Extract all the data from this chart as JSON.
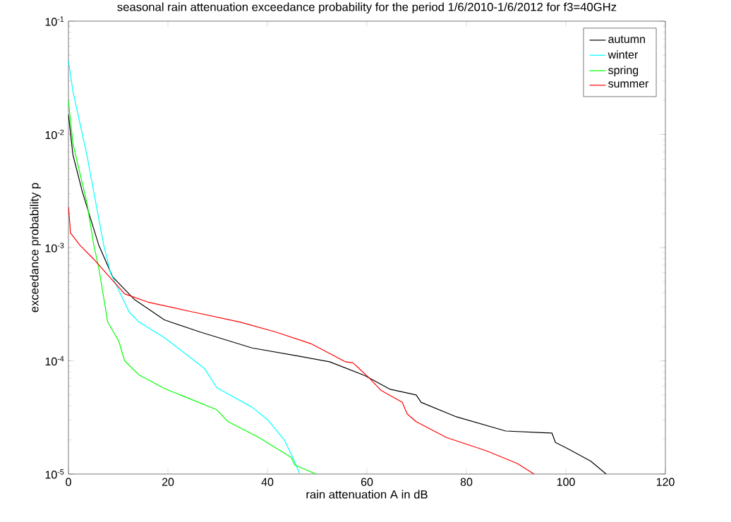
{
  "chart_data": {
    "type": "line",
    "title": "seasonal rain attenuation exceedance probability for the period 1/6/2010-1/6/2012 for f3=40GHz",
    "xlabel": "rain attenuation  A in dB",
    "ylabel": "exceedance probability p",
    "log": "y",
    "xlim": [
      0,
      120
    ],
    "ylim": [
      1e-05,
      0.1
    ],
    "xticks": [
      0,
      20,
      40,
      60,
      80,
      100,
      120
    ],
    "yticks": [
      {
        "value": 1e-05,
        "label": "10$^{-5}$"
      },
      {
        "value": 0.0001,
        "label": "10$^{-4}$"
      },
      {
        "value": 0.001,
        "label": "10$^{-3}$"
      },
      {
        "value": 0.01,
        "label": "10$^{-2}$"
      },
      {
        "value": 0.1,
        "label": "10$^{-1}$"
      }
    ],
    "legend": "top right",
    "grid": false,
    "line_style": "solid",
    "series": [
      {
        "name": "autumn",
        "color": "#000000",
        "x": [
          0,
          0.9,
          2.8,
          6.1,
          8.9,
          13.2,
          19.3,
          26.4,
          36.9,
          46.3,
          52.5,
          59.6,
          64.7,
          69.9,
          70.9,
          78,
          87.9,
          97.2,
          97.9,
          100.1,
          105,
          108.1
        ],
        "values": [
          0.015,
          0.0066,
          0.0031,
          0.00105,
          0.00055,
          0.00035,
          0.00023,
          0.00018,
          0.00013,
          0.00011,
          9.8e-05,
          7.4e-05,
          5.6e-05,
          5e-05,
          4.3e-05,
          3.2e-05,
          2.4e-05,
          2.3e-05,
          1.9e-05,
          1.7e-05,
          1.3e-05,
          1e-05
        ]
      },
      {
        "name": "winter",
        "color": "#00ffff",
        "x": [
          0,
          0.9,
          3.7,
          7.1,
          8.5,
          12.2,
          14.2,
          19.3,
          24.5,
          27.4,
          29.8,
          36.9,
          40.1,
          43.4,
          45.1,
          46.5
        ],
        "values": [
          0.045,
          0.024,
          0.0066,
          0.00105,
          0.00059,
          0.00027,
          0.00022,
          0.00016,
          0.000107,
          8.5e-05,
          5.8e-05,
          3.9e-05,
          3e-05,
          2e-05,
          1.4e-05,
          1e-05
        ]
      },
      {
        "name": "spring",
        "color": "#00ff00",
        "x": [
          0,
          0.9,
          3.7,
          5.1,
          6.1,
          7.9,
          10.1,
          11.3,
          14.2,
          19.3,
          24.5,
          29.8,
          32.1,
          38.3,
          44.8,
          45.5,
          49.8
        ],
        "values": [
          0.02,
          0.0083,
          0.0025,
          0.00105,
          0.00066,
          0.00022,
          0.00015,
          0.0001,
          7.5e-05,
          5.7e-05,
          4.6e-05,
          3.7e-05,
          2.9e-05,
          2.1e-05,
          1.4e-05,
          1.2e-05,
          1e-05
        ]
      },
      {
        "name": "summer",
        "color": "#ff0000",
        "x": [
          0,
          0.3,
          0.4,
          2.3,
          5.1,
          7.5,
          11.3,
          16,
          25,
          34.5,
          41.6,
          48.7,
          55.7,
          57.2,
          60.4,
          62.8,
          67.1,
          68.1,
          69.9,
          76,
          84.1,
          90.2,
          93.6
        ],
        "values": [
          0.0023,
          0.0016,
          0.00135,
          0.00105,
          0.00079,
          0.0006,
          0.00039,
          0.00033,
          0.00027,
          0.00022,
          0.00018,
          0.000142,
          9.8e-05,
          9.6e-05,
          7.1e-05,
          5.5e-05,
          4.3e-05,
          3.4e-05,
          2.9e-05,
          2.1e-05,
          1.6e-05,
          1.24e-05,
          1e-05
        ]
      }
    ]
  }
}
